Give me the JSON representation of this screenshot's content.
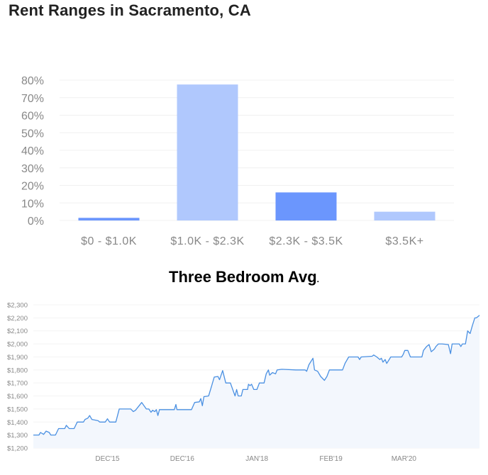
{
  "chart_data": [
    {
      "type": "bar",
      "title": "Rent Ranges in Sacramento, CA",
      "categories": [
        "$0 - $1.0K",
        "$1.0K - $2.3K",
        "$2.3K - $3.5K",
        "$3.5K+"
      ],
      "values": [
        1.5,
        77.5,
        16,
        5
      ],
      "colors": [
        "#6b96fd",
        "#b0c8fd",
        "#6b96fd",
        "#b0c8fd"
      ],
      "ylim": [
        0,
        80
      ],
      "yticks": [
        0,
        10,
        20,
        30,
        40,
        50,
        60,
        70,
        80
      ],
      "ytick_labels": [
        "0%",
        "10%",
        "20%",
        "30%",
        "40%",
        "50%",
        "60%",
        "70%",
        "80%"
      ],
      "grid": true,
      "xlabel": "",
      "ylabel": ""
    },
    {
      "type": "area",
      "title": "Three Bedroom Avg",
      "title_suffix": ".",
      "xlim": [
        0,
        1433
      ],
      "ylim": [
        1200,
        2300
      ],
      "yticks": [
        1200,
        1300,
        1400,
        1500,
        1600,
        1700,
        1800,
        1900,
        2000,
        2100,
        2200,
        2300
      ],
      "ytick_labels": [
        "$1,200",
        "$1,300",
        "$1,400",
        "$1,500",
        "$1,600",
        "$1,700",
        "$1,800",
        "$1,900",
        "$2,000",
        "$2,100",
        "$2,200",
        "$2,300"
      ],
      "xticks": [
        238,
        478,
        718,
        956,
        1190
      ],
      "xtick_labels": [
        "DEC'15",
        "DEC'16",
        "JAN'18",
        "FEB'19",
        "MAR'20"
      ],
      "line_color": "#4a90e2",
      "fill_color": "#f3f7fd",
      "grid": true,
      "points": [
        [
          0,
          1300
        ],
        [
          18,
          1300
        ],
        [
          23,
          1320
        ],
        [
          33,
          1305
        ],
        [
          41,
          1330
        ],
        [
          51,
          1320
        ],
        [
          56,
          1300
        ],
        [
          71,
          1300
        ],
        [
          81,
          1350
        ],
        [
          101,
          1350
        ],
        [
          106,
          1375
        ],
        [
          115,
          1350
        ],
        [
          131,
          1350
        ],
        [
          141,
          1400
        ],
        [
          161,
          1400
        ],
        [
          166,
          1420
        ],
        [
          175,
          1430
        ],
        [
          181,
          1450
        ],
        [
          188,
          1420
        ],
        [
          208,
          1410
        ],
        [
          213,
          1400
        ],
        [
          231,
          1400
        ],
        [
          238,
          1425
        ],
        [
          245,
          1400
        ],
        [
          265,
          1400
        ],
        [
          276,
          1500
        ],
        [
          313,
          1500
        ],
        [
          321,
          1480
        ],
        [
          328,
          1490
        ],
        [
          338,
          1520
        ],
        [
          348,
          1550
        ],
        [
          363,
          1500
        ],
        [
          371,
          1500
        ],
        [
          378,
          1475
        ],
        [
          383,
          1490
        ],
        [
          390,
          1480
        ],
        [
          395,
          1495
        ],
        [
          400,
          1450
        ],
        [
          405,
          1495
        ],
        [
          453,
          1495
        ],
        [
          458,
          1535
        ],
        [
          461,
          1495
        ],
        [
          508,
          1495
        ],
        [
          518,
          1550
        ],
        [
          533,
          1555
        ],
        [
          538,
          1580
        ],
        [
          543,
          1525
        ],
        [
          548,
          1595
        ],
        [
          563,
          1600
        ],
        [
          573,
          1680
        ],
        [
          581,
          1745
        ],
        [
          593,
          1750
        ],
        [
          598,
          1725
        ],
        [
          608,
          1795
        ],
        [
          618,
          1700
        ],
        [
          633,
          1700
        ],
        [
          648,
          1600
        ],
        [
          653,
          1650
        ],
        [
          658,
          1600
        ],
        [
          668,
          1600
        ],
        [
          673,
          1650
        ],
        [
          688,
          1650
        ],
        [
          691,
          1690
        ],
        [
          696,
          1680
        ],
        [
          701,
          1690
        ],
        [
          708,
          1650
        ],
        [
          718,
          1650
        ],
        [
          726,
          1700
        ],
        [
          741,
          1700
        ],
        [
          748,
          1770
        ],
        [
          755,
          1800
        ],
        [
          759,
          1760
        ],
        [
          768,
          1780
        ],
        [
          778,
          1770
        ],
        [
          783,
          1800
        ],
        [
          798,
          1805
        ],
        [
          843,
          1800
        ],
        [
          873,
          1800
        ],
        [
          878,
          1790
        ],
        [
          885,
          1840
        ],
        [
          898,
          1890
        ],
        [
          903,
          1800
        ],
        [
          913,
          1790
        ],
        [
          923,
          1750
        ],
        [
          935,
          1720
        ],
        [
          943,
          1750
        ],
        [
          951,
          1800
        ],
        [
          993,
          1800
        ],
        [
          1001,
          1850
        ],
        [
          1013,
          1900
        ],
        [
          1043,
          1900
        ],
        [
          1048,
          1880
        ],
        [
          1053,
          1900
        ],
        [
          1088,
          1905
        ],
        [
          1093,
          1915
        ],
        [
          1103,
          1900
        ],
        [
          1113,
          1880
        ],
        [
          1118,
          1890
        ],
        [
          1123,
          1860
        ],
        [
          1130,
          1880
        ],
        [
          1135,
          1850
        ],
        [
          1143,
          1880
        ],
        [
          1148,
          1900
        ],
        [
          1183,
          1900
        ],
        [
          1188,
          1920
        ],
        [
          1193,
          1950
        ],
        [
          1203,
          1950
        ],
        [
          1211,
          1900
        ],
        [
          1248,
          1900
        ],
        [
          1253,
          1950
        ],
        [
          1263,
          1980
        ],
        [
          1271,
          1995
        ],
        [
          1278,
          1940
        ],
        [
          1288,
          1960
        ],
        [
          1293,
          1980
        ],
        [
          1301,
          2000
        ],
        [
          1313,
          2000
        ],
        [
          1333,
          1995
        ],
        [
          1340,
          1925
        ],
        [
          1345,
          2000
        ],
        [
          1368,
          2000
        ],
        [
          1373,
          1980
        ],
        [
          1378,
          2000
        ],
        [
          1388,
          2000
        ],
        [
          1395,
          2100
        ],
        [
          1403,
          2080
        ],
        [
          1410,
          2140
        ],
        [
          1418,
          2200
        ],
        [
          1423,
          2200
        ],
        [
          1433,
          2220
        ]
      ]
    }
  ]
}
